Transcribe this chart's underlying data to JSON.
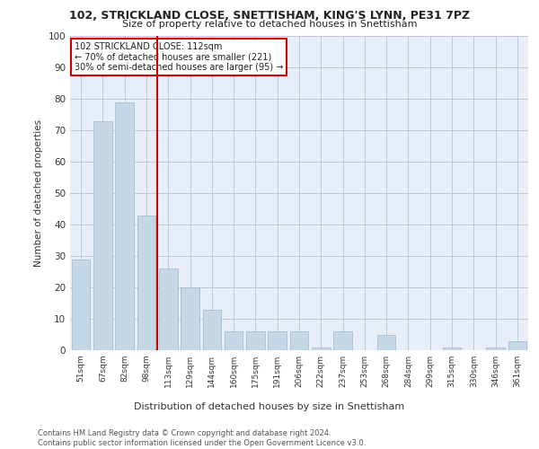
{
  "title1": "102, STRICKLAND CLOSE, SNETTISHAM, KING'S LYNN, PE31 7PZ",
  "title2": "Size of property relative to detached houses in Snettisham",
  "xlabel": "Distribution of detached houses by size in Snettisham",
  "ylabel": "Number of detached properties",
  "categories": [
    "51sqm",
    "67sqm",
    "82sqm",
    "98sqm",
    "113sqm",
    "129sqm",
    "144sqm",
    "160sqm",
    "175sqm",
    "191sqm",
    "206sqm",
    "222sqm",
    "237sqm",
    "253sqm",
    "268sqm",
    "284sqm",
    "299sqm",
    "315sqm",
    "330sqm",
    "346sqm",
    "361sqm"
  ],
  "values": [
    29,
    73,
    79,
    43,
    26,
    20,
    13,
    6,
    6,
    6,
    6,
    1,
    6,
    0,
    5,
    0,
    0,
    1,
    0,
    1,
    3
  ],
  "bar_color": "#c5d8e8",
  "bar_edge_color": "#a0b8cc",
  "annotation_text": "102 STRICKLAND CLOSE: 112sqm\n← 70% of detached houses are smaller (221)\n30% of semi-detached houses are larger (95) →",
  "annotation_box_color": "#ffffff",
  "annotation_box_edge": "#cc0000",
  "vline_color": "#cc0000",
  "grid_color": "#c0c8d8",
  "bg_color": "#e8eef8",
  "footer": "Contains HM Land Registry data © Crown copyright and database right 2024.\nContains public sector information licensed under the Open Government Licence v3.0.",
  "ylim": [
    0,
    100
  ],
  "yticks": [
    0,
    10,
    20,
    30,
    40,
    50,
    60,
    70,
    80,
    90,
    100
  ]
}
